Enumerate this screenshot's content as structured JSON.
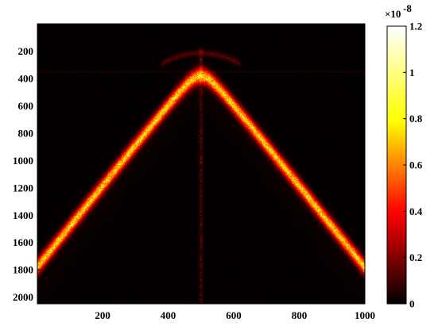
{
  "chart_data": {
    "type": "heatmap",
    "title": "",
    "xlabel": "",
    "ylabel": "",
    "x_range": [
      1,
      1000
    ],
    "y_range": [
      1,
      2048
    ],
    "y_reversed": true,
    "x_ticks": [
      "200",
      "400",
      "600",
      "800",
      "1000"
    ],
    "y_ticks": [
      "200",
      "400",
      "600",
      "800",
      "1000",
      "1200",
      "1400",
      "1600",
      "1800",
      "2000"
    ],
    "colormap": "hot",
    "color_range": [
      0,
      1.2e-08
    ],
    "colorbar": {
      "ticks": [
        "0",
        "0.2",
        "0.4",
        "0.6",
        "0.8",
        "1",
        "1.2"
      ],
      "exponent_base": "×10",
      "exponent": "-8"
    },
    "features": {
      "arch": {
        "description": "bright hyperbolic band",
        "apex_x": 500,
        "apex_y": 380,
        "edge_y_at_x1": 1780,
        "edge_y_at_x1000": 1780,
        "peak_value": 8e-09
      },
      "vertical_line": {
        "x": 500,
        "peak_value": 3.5e-09
      },
      "faint_arc": {
        "apex_x": 500,
        "apex_y": 215,
        "peak_value": 1.5e-09
      }
    },
    "grid": false,
    "legend": "colorbar-right"
  }
}
